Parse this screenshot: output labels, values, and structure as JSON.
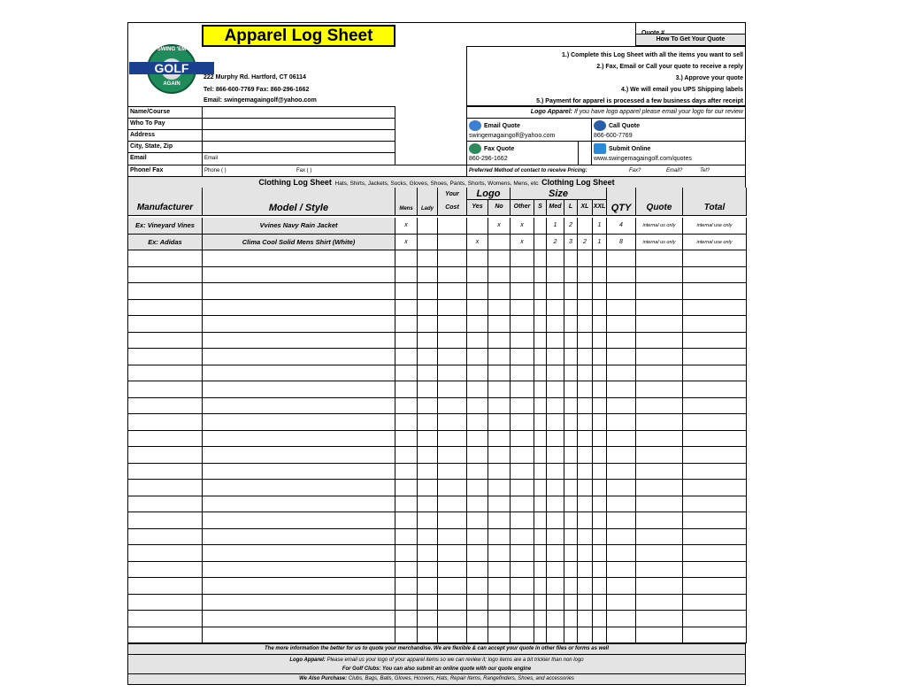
{
  "header": {
    "title": "Apparel Log Sheet",
    "quote_label": "Quote #",
    "how_to": "How To Get Your Quote",
    "address": "222 Murphy Rd. Hartford, CT 06114",
    "phone_fax": "Tel: 866-600-7769 Fax: 860-296-1662",
    "email": "Email: swingemagaingolf@yahoo.com",
    "logo_text": {
      "top": "SWING 'EM",
      "middle": "GOLF",
      "bottom": "AGAIN"
    },
    "title_bg": "#ffff00"
  },
  "steps": [
    "1.) Complete this Log Sheet with all the items you want to sell",
    "2.) Fax, Email or Call your quote to receive a reply",
    "3.) Approve your quote",
    "4.) We will email you UPS Shipping labels",
    "5.) Payment for apparel is processed a few business days after receipt"
  ],
  "logo_apparel": {
    "label": "Logo Apparel:",
    "text": "If you have logo apparel please email your logo for our review"
  },
  "contact": {
    "email_title": "Email Quote",
    "email_value": "swingemagaingolf@yahoo.com",
    "call_title": "Call Quote",
    "call_value": "866-600-7769",
    "fax_title": "Fax Quote",
    "fax_value": "860-296-1662",
    "online_title": "Submit Online",
    "online_value": "www.swingemagaingolf.com/quotes",
    "preferred": "Preferred Method of contact to receive Pricing:",
    "opt_fax": "Fax?",
    "opt_email": "Email?",
    "opt_tel": "Tel?"
  },
  "form": {
    "name": "Name/Course",
    "who": "Who To Pay",
    "address": "Address",
    "city": "City, State, Zip",
    "email": "Email",
    "email_placeholder": "Email",
    "phone": "Phone/ Fax",
    "phone_placeholder": "Phone (      )",
    "fax_placeholder": "Fax (      )"
  },
  "banner": {
    "title": "Clothing Log Sheet",
    "items": "Hats, Shirts, Jackets, Socks, Gloves, Shoes, Pants, Shorts, Womens, Mens, etc",
    "title2": "Clothing Log Sheet"
  },
  "table": {
    "headers": {
      "manufacturer": "Manufacturer",
      "model": "Model / Style",
      "mens": "Mens",
      "lady": "Lady",
      "your": "Your",
      "cost": "Cost",
      "logo": "Logo",
      "yes": "Yes",
      "no": "No",
      "size": "Size",
      "other": "Other",
      "s": "S",
      "med": "Med",
      "l": "L",
      "xl": "XL",
      "xxl": "XXL",
      "qty": "QTY",
      "quote": "Quote",
      "total": "Total"
    },
    "rows": [
      [
        "Ex: Vineyard Vines",
        "Vvines Navy Rain Jacket",
        "x",
        "",
        "",
        "",
        "x",
        "x",
        "",
        "1",
        "2",
        "",
        "1",
        "4",
        "internal us only",
        "internal use only"
      ],
      [
        "Ex: Adidas",
        "Clima Cool Solid Mens Shirt (White)",
        "x",
        "",
        "",
        "x",
        "",
        "x",
        "",
        "2",
        "3",
        "2",
        "1",
        "8",
        "internal us only",
        "internal use only"
      ]
    ],
    "empty_rows": 24
  },
  "footer": {
    "line1": "The more information the better for us to quote your merchandise. We are flexible & can accept your quote in other files or forms as well",
    "line2_label": "Logo Apparel:",
    "line2": "Please email us your logo of your apparel items so we can review it; logo items are a bit trickier than non logo",
    "line2_overlay": "For Golf Clubs: You can also submit an online quote with our quote engine",
    "line3_label": "We Also Purchase:",
    "line3": "Clubs, Bags, Balls, Gloves, Hcovers, Hats, Repair Items, Rangefinders, Shoes, and accessories"
  }
}
